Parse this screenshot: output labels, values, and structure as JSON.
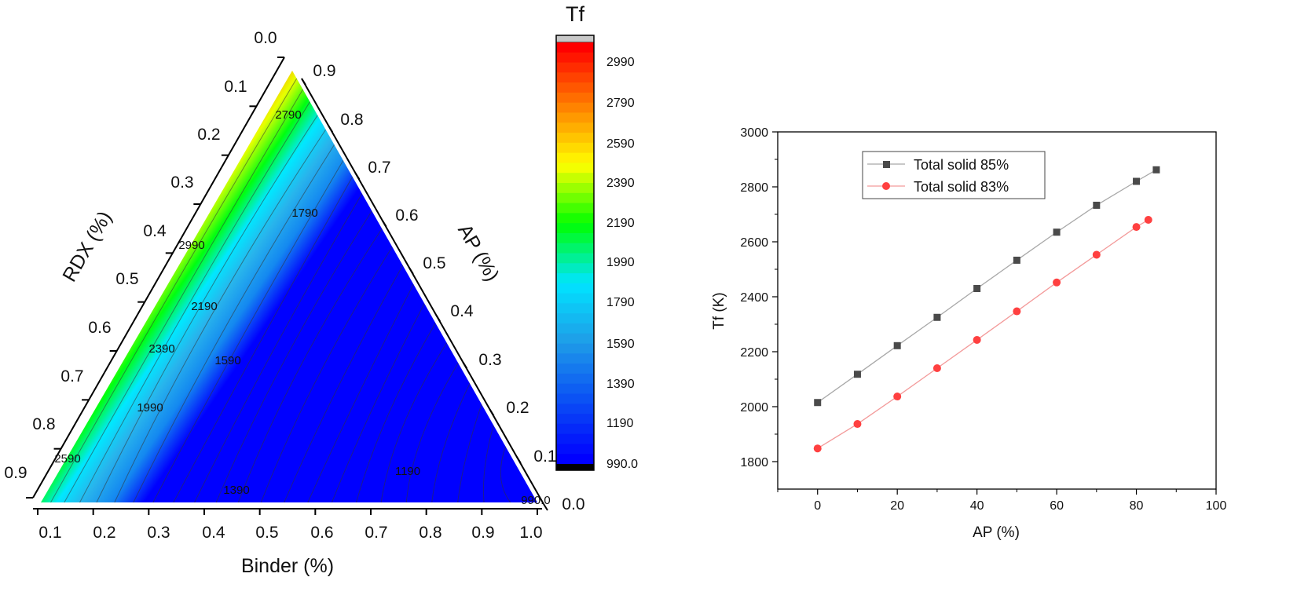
{
  "chart_data": [
    {
      "type": "heatmap",
      "subtype": "ternary contour",
      "title": "",
      "axes": {
        "left": {
          "label": "RDX (%)",
          "ticks": [
            "0.0",
            "0.1",
            "0.2",
            "0.3",
            "0.4",
            "0.5",
            "0.6",
            "0.7",
            "0.8",
            "0.9"
          ]
        },
        "right": {
          "label": "AP (%)",
          "ticks": [
            "0.9",
            "0.8",
            "0.7",
            "0.6",
            "0.5",
            "0.4",
            "0.3",
            "0.2",
            "0.1",
            "0.0"
          ]
        },
        "bottom": {
          "label": "Binder (%)",
          "ticks": [
            "0.1",
            "0.2",
            "0.3",
            "0.4",
            "0.5",
            "0.6",
            "0.7",
            "0.8",
            "0.9",
            "1.0"
          ]
        }
      },
      "colorbar": {
        "title": "Tf",
        "ticks": [
          "2990",
          "2790",
          "2590",
          "2390",
          "2190",
          "1990",
          "1790",
          "1590",
          "1390",
          "1190",
          "990.0"
        ],
        "range": [
          990,
          3090
        ],
        "colors": [
          "#0000ff",
          "#0a50f4",
          "#1f9de8",
          "#00e5ff",
          "#00ff00",
          "#ffff00",
          "#ff8000",
          "#ff0000"
        ]
      },
      "contour_labels": [
        {
          "text": "2790"
        },
        {
          "text": "1790"
        },
        {
          "text": "2990"
        },
        {
          "text": "2190"
        },
        {
          "text": "2390"
        },
        {
          "text": "1590"
        },
        {
          "text": "1990"
        },
        {
          "text": "2590"
        },
        {
          "text": "1390"
        },
        {
          "text": "1190"
        },
        {
          "text": "990.0"
        }
      ]
    },
    {
      "type": "line",
      "title": "",
      "xlabel": "AP (%)",
      "ylabel": "Tf (K)",
      "xlim": [
        -10,
        100
      ],
      "ylim": [
        1700,
        3000
      ],
      "xticks": [
        0,
        20,
        40,
        60,
        80,
        100
      ],
      "yticks": [
        1800,
        2000,
        2200,
        2400,
        2600,
        2800,
        3000
      ],
      "legend_position": "top-left",
      "series": [
        {
          "name": "Total solid 85%",
          "color": "#4a4a4a",
          "line_color": "#a8a8a8",
          "marker": "square",
          "x": [
            0,
            10,
            20,
            30,
            40,
            50,
            60,
            70,
            80,
            85
          ],
          "y": [
            2015,
            2118,
            2222,
            2325,
            2430,
            2533,
            2635,
            2733,
            2820,
            2862
          ]
        },
        {
          "name": "Total solid 83%",
          "color": "#ff4040",
          "line_color": "#f39a9a",
          "marker": "circle",
          "x": [
            0,
            10,
            20,
            30,
            40,
            50,
            60,
            70,
            80,
            83
          ],
          "y": [
            1848,
            1937,
            2037,
            2140,
            2243,
            2347,
            2452,
            2553,
            2654,
            2680
          ]
        }
      ]
    }
  ]
}
